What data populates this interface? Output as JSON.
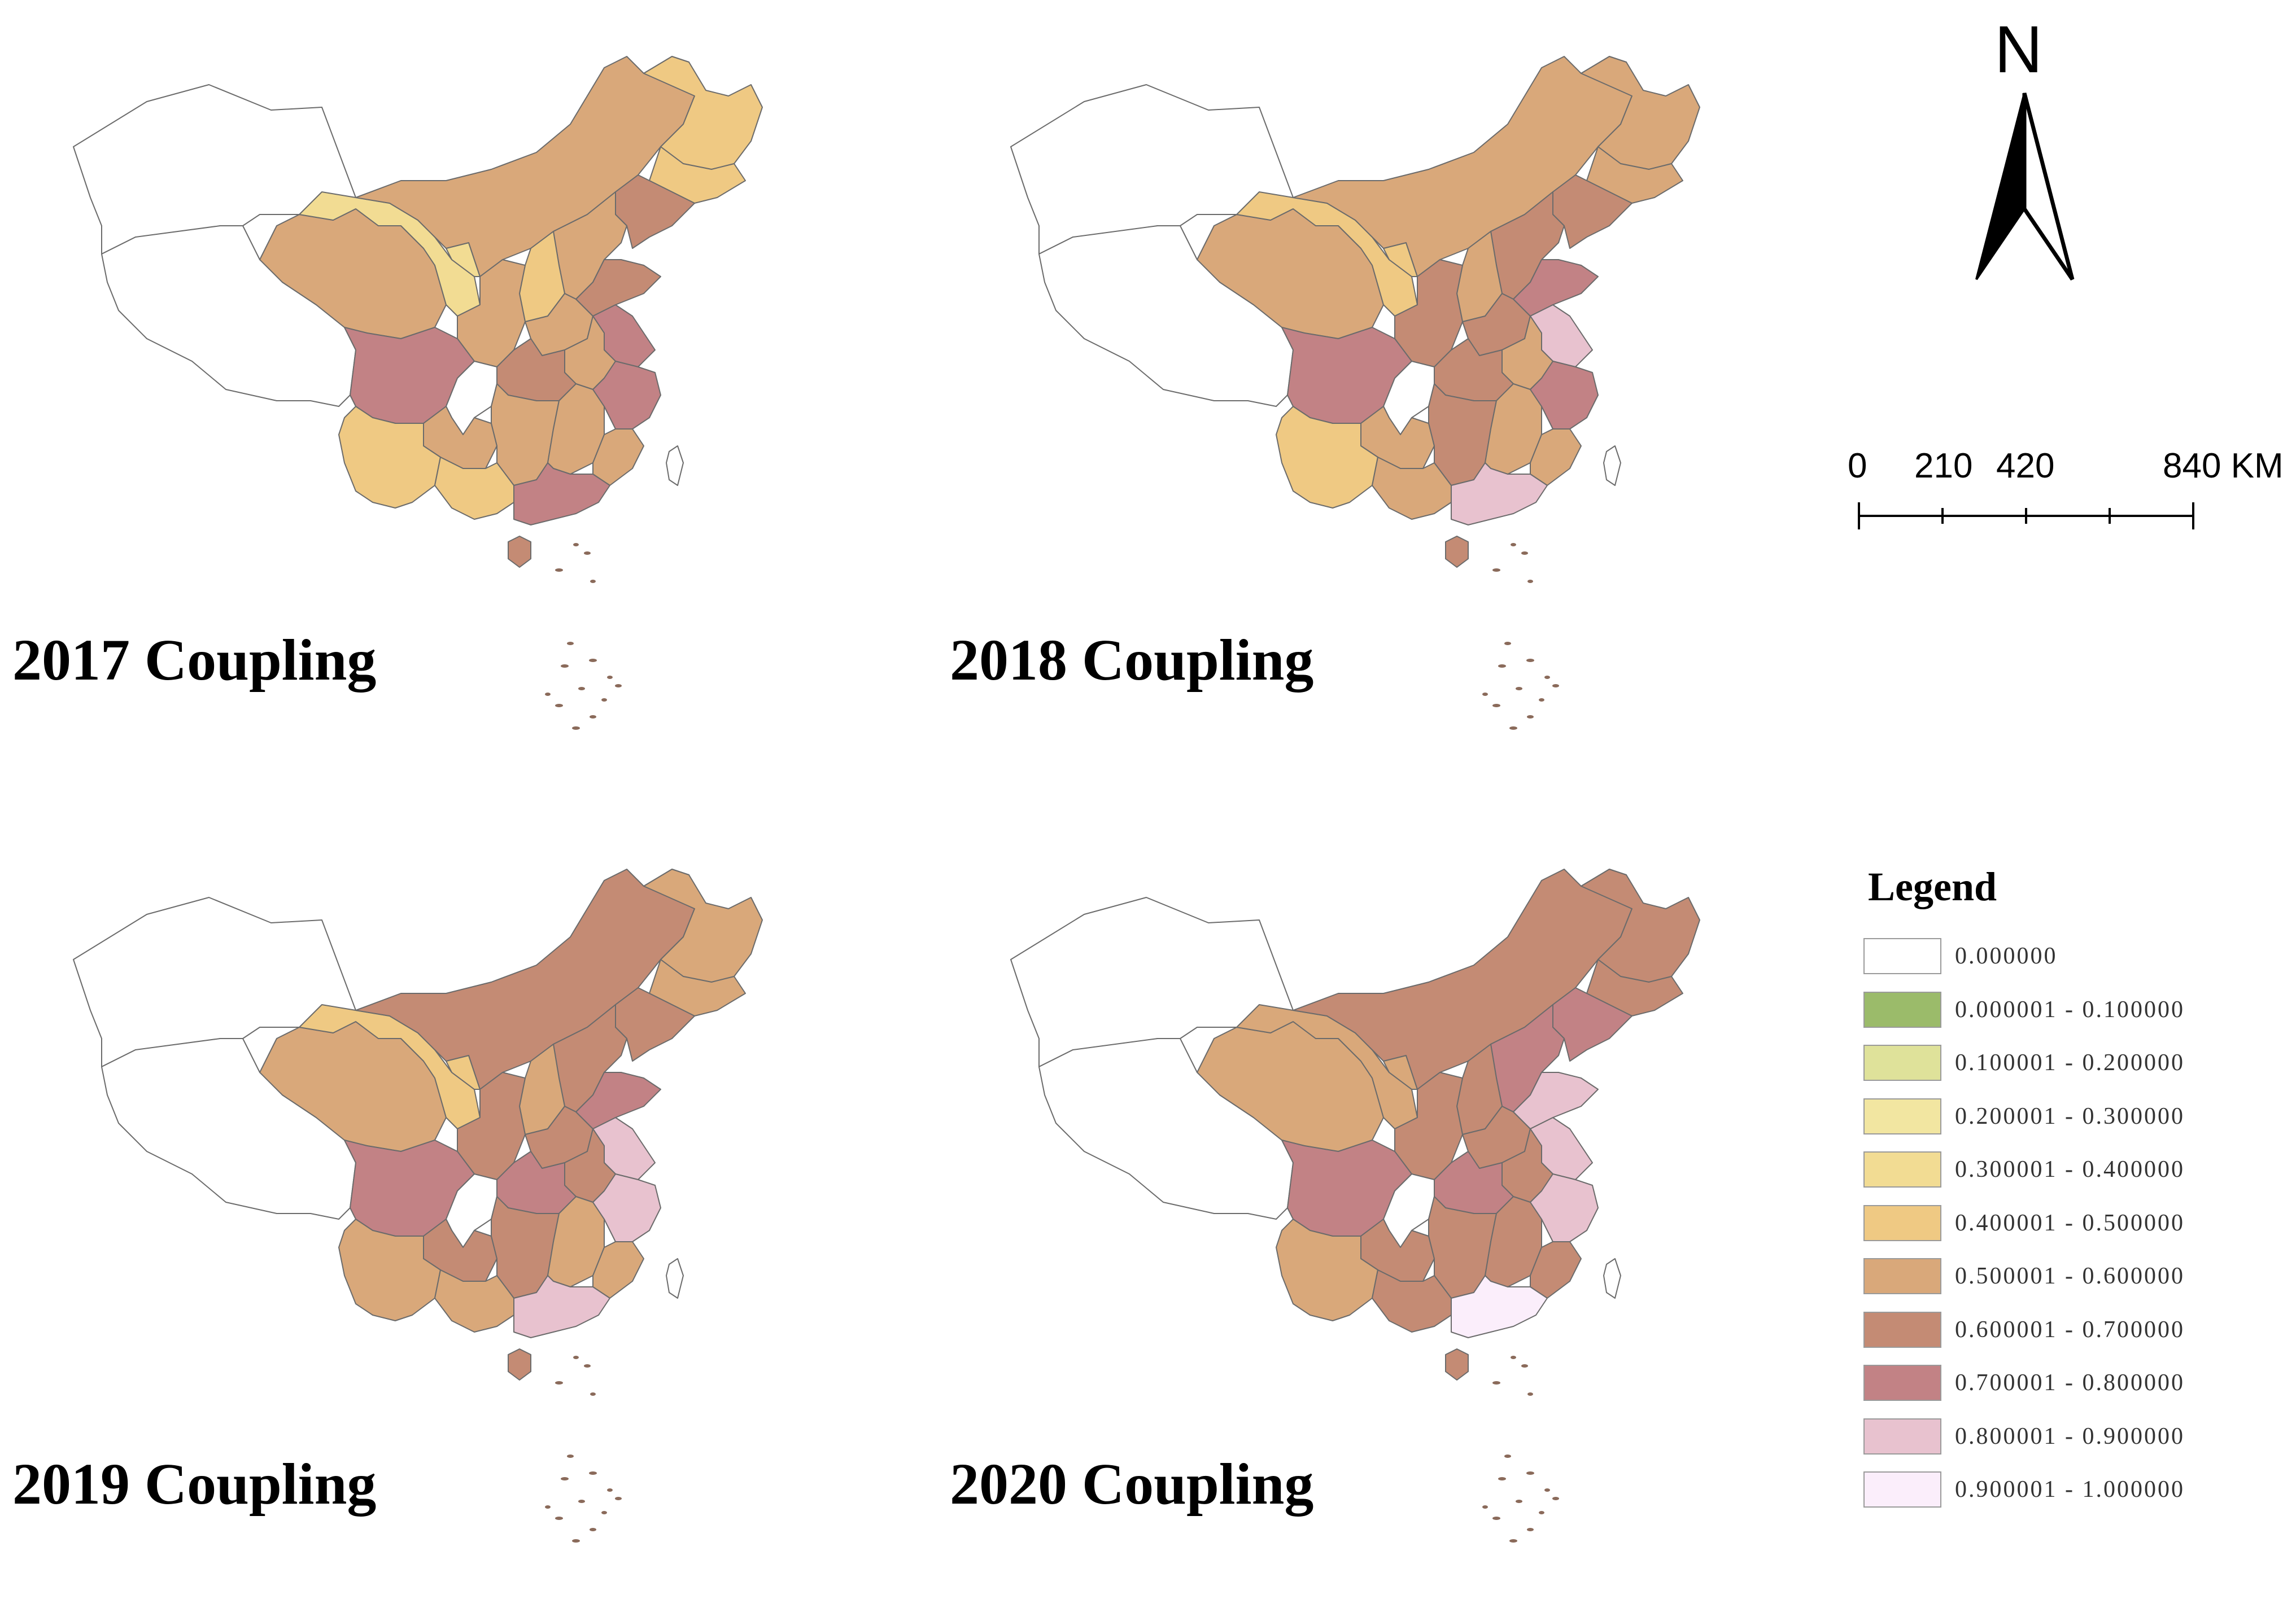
{
  "panels": [
    {
      "title": "2017 Coupling",
      "fills": {
        "XJ": "#ffffff",
        "XZ": "#ffffff",
        "QH": "#d9a87a",
        "GS": "#f2dc93",
        "NX": "#f2dc93",
        "IM": "#d9a87a",
        "HL": "#efc983",
        "JL": "#efc983",
        "LN": "#c48b74",
        "HE": "#d9a87a",
        "SX": "#efc983",
        "SN": "#d9a87a",
        "HA": "#d9a87a",
        "SD": "#c48b74",
        "JS": "#c28285",
        "AH": "#d9a87a",
        "HB": "#c48b74",
        "SC": "#c28285",
        "CQ": "#ffffff",
        "GZ": "#d9a87a",
        "HN": "#d9a87a",
        "JX": "#d9a87a",
        "ZJ": "#c28285",
        "FJ": "#d9a87a",
        "YN": "#efc983",
        "GX": "#efc983",
        "GD": "#c28285",
        "HI": "#c48b74",
        "TW": "#ffffff"
      }
    },
    {
      "title": "2018 Coupling",
      "fills": {
        "XJ": "#ffffff",
        "XZ": "#ffffff",
        "QH": "#d9a87a",
        "GS": "#efc983",
        "NX": "#efc983",
        "IM": "#d9a87a",
        "HL": "#d9a87a",
        "JL": "#d9a87a",
        "LN": "#c48b74",
        "HE": "#c48b74",
        "SX": "#d9a87a",
        "SN": "#c48b74",
        "HA": "#c48b74",
        "SD": "#c28285",
        "JS": "#e8c2cf",
        "AH": "#d9a87a",
        "HB": "#c48b74",
        "SC": "#c28285",
        "CQ": "#ffffff",
        "GZ": "#d9a87a",
        "HN": "#c48b74",
        "JX": "#d9a87a",
        "ZJ": "#c28285",
        "FJ": "#d9a87a",
        "YN": "#efc983",
        "GX": "#d9a87a",
        "GD": "#e8c2cf",
        "HI": "#c48b74",
        "TW": "#ffffff"
      }
    },
    {
      "title": "2019 Coupling",
      "fills": {
        "XJ": "#ffffff",
        "XZ": "#ffffff",
        "QH": "#d9a87a",
        "GS": "#efc983",
        "NX": "#efc983",
        "IM": "#c48b74",
        "HL": "#d9a87a",
        "JL": "#d9a87a",
        "LN": "#c48b74",
        "HE": "#c48b74",
        "SX": "#d9a87a",
        "SN": "#c48b74",
        "HA": "#c48b74",
        "SD": "#c28285",
        "JS": "#e8c2cf",
        "AH": "#c48b74",
        "HB": "#c28285",
        "SC": "#c28285",
        "CQ": "#ffffff",
        "GZ": "#c48b74",
        "HN": "#c48b74",
        "JX": "#d9a87a",
        "ZJ": "#e8c2cf",
        "FJ": "#d9a87a",
        "YN": "#d9a87a",
        "GX": "#d9a87a",
        "GD": "#e8c2cf",
        "HI": "#c48b74",
        "TW": "#ffffff"
      }
    },
    {
      "title": "2020 Coupling",
      "fills": {
        "XJ": "#ffffff",
        "XZ": "#ffffff",
        "QH": "#d9a87a",
        "GS": "#d9a87a",
        "NX": "#d9a87a",
        "IM": "#c48b74",
        "HL": "#c48b74",
        "JL": "#c48b74",
        "LN": "#c28285",
        "HE": "#c28285",
        "SX": "#c48b74",
        "SN": "#c48b74",
        "HA": "#c48b74",
        "SD": "#e8c2cf",
        "JS": "#e8c2cf",
        "AH": "#c48b74",
        "HB": "#c28285",
        "SC": "#c28285",
        "CQ": "#ffffff",
        "GZ": "#c48b74",
        "HN": "#c48b74",
        "JX": "#c48b74",
        "ZJ": "#e8c2cf",
        "FJ": "#c48b74",
        "YN": "#d9a87a",
        "GX": "#c48b74",
        "GD": "#fbeefb",
        "HI": "#c48b74",
        "TW": "#ffffff"
      }
    }
  ],
  "north_arrow": {
    "letter": "N"
  },
  "scale_bar": {
    "labels": [
      "0",
      "210",
      "420",
      "840 KM"
    ]
  },
  "legend": {
    "title": "Legend",
    "items": [
      {
        "label": "0.000000",
        "color": "#ffffff"
      },
      {
        "label": "0.000001 - 0.100000",
        "color": "#9bbb6a"
      },
      {
        "label": "0.100001 - 0.200000",
        "color": "#dfe29a"
      },
      {
        "label": "0.200001 - 0.300000",
        "color": "#f2e6a1"
      },
      {
        "label": "0.300001 - 0.400000",
        "color": "#f2dc93"
      },
      {
        "label": "0.400001 - 0.500000",
        "color": "#efc983"
      },
      {
        "label": "0.500001 - 0.600000",
        "color": "#d9a87a"
      },
      {
        "label": "0.600001 - 0.700000",
        "color": "#c48b74"
      },
      {
        "label": "0.700001 - 0.800000",
        "color": "#c28285"
      },
      {
        "label": "0.800001 - 0.900000",
        "color": "#e8c2cf"
      },
      {
        "label": "0.900001 - 1.000000",
        "color": "#fbeefb"
      }
    ]
  }
}
